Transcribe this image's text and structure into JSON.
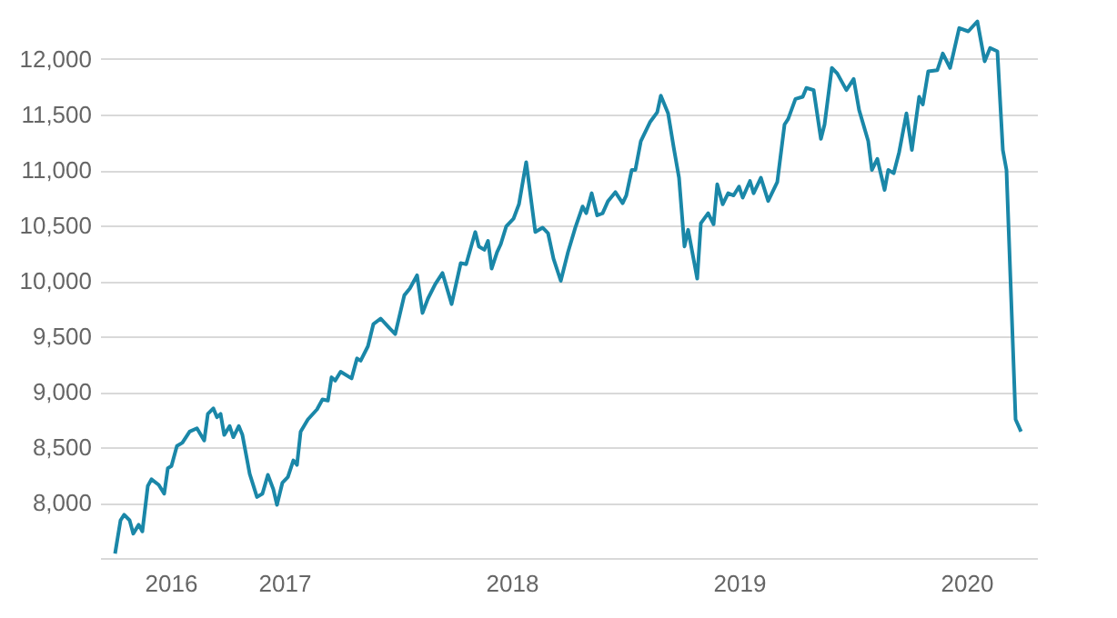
{
  "chart_data": {
    "type": "line",
    "x": [
      2016.256,
      2016.28,
      2016.296,
      2016.32,
      2016.336,
      2016.36,
      2016.376,
      2016.4,
      2016.416,
      2016.448,
      2016.472,
      2016.488,
      2016.504,
      2016.528,
      2016.552,
      2016.584,
      2016.616,
      2016.648,
      2016.664,
      2016.688,
      2016.704,
      2016.72,
      2016.736,
      2016.76,
      2016.776,
      2016.8,
      2016.816,
      2016.848,
      2016.88,
      2016.904,
      2016.928,
      2016.952,
      2016.968,
      2016.992,
      2017.016,
      2017.04,
      2017.056,
      2017.072,
      2017.104,
      2017.144,
      2017.168,
      2017.192,
      2017.208,
      2017.224,
      2017.248,
      2017.296,
      2017.32,
      2017.336,
      2017.368,
      2017.392,
      2017.424,
      2017.464,
      2017.488,
      2017.528,
      2017.552,
      2017.584,
      2017.608,
      2017.632,
      2017.664,
      2017.696,
      2017.736,
      2017.776,
      2017.8,
      2017.84,
      2017.856,
      2017.88,
      2017.896,
      2017.912,
      2017.936,
      2017.952,
      2017.976,
      2018.008,
      2018.032,
      2018.064,
      2018.104,
      2018.136,
      2018.16,
      2018.184,
      2018.216,
      2018.248,
      2018.28,
      2018.312,
      2018.328,
      2018.352,
      2018.376,
      2018.4,
      2018.424,
      2018.456,
      2018.488,
      2018.504,
      2018.528,
      2018.544,
      2018.568,
      2018.608,
      2018.64,
      2018.656,
      2018.688,
      2018.712,
      2018.736,
      2018.76,
      2018.776,
      2018.816,
      2018.832,
      2018.864,
      2018.888,
      2018.904,
      2018.928,
      2018.952,
      2018.976,
      2019.0,
      2019.016,
      2019.048,
      2019.064,
      2019.096,
      2019.128,
      2019.168,
      2019.2,
      2019.216,
      2019.248,
      2019.28,
      2019.296,
      2019.328,
      2019.36,
      2019.376,
      2019.408,
      2019.432,
      2019.472,
      2019.504,
      2019.528,
      2019.568,
      2019.584,
      2019.608,
      2019.64,
      2019.656,
      2019.68,
      2019.704,
      2019.736,
      2019.76,
      2019.792,
      2019.808,
      2019.832,
      2019.872,
      2019.896,
      2019.928,
      2019.968,
      2020.008,
      2020.048,
      2020.08,
      2020.104,
      2020.136,
      2020.16,
      2020.176,
      2020.216,
      2020.24
    ],
    "series": [
      {
        "color": "#1a87a8",
        "values": [
          7540,
          7840,
          7890,
          7840,
          7720,
          7800,
          7740,
          8150,
          8210,
          8160,
          8080,
          8310,
          8330,
          8510,
          8540,
          8640,
          8670,
          8560,
          8800,
          8850,
          8770,
          8800,
          8610,
          8690,
          8590,
          8690,
          8610,
          8260,
          8050,
          8080,
          8250,
          8120,
          7980,
          8180,
          8230,
          8380,
          8340,
          8640,
          8750,
          8840,
          8930,
          8920,
          9130,
          9100,
          9180,
          9120,
          9300,
          9280,
          9410,
          9610,
          9660,
          9570,
          9520,
          9870,
          9930,
          10050,
          9710,
          9840,
          9970,
          10070,
          9790,
          10160,
          10150,
          10440,
          10310,
          10280,
          10360,
          10110,
          10260,
          10330,
          10490,
          10560,
          10690,
          11070,
          10440,
          10480,
          10430,
          10200,
          10000,
          10260,
          10480,
          10670,
          10610,
          10790,
          10590,
          10610,
          10720,
          10800,
          10700,
          10770,
          11000,
          11000,
          11260,
          11430,
          11520,
          11670,
          11510,
          11210,
          10930,
          10310,
          10460,
          10020,
          10520,
          10610,
          10510,
          10870,
          10690,
          10790,
          10770,
          10850,
          10750,
          10900,
          10790,
          10930,
          10720,
          10890,
          11410,
          11460,
          11640,
          11660,
          11740,
          11720,
          11280,
          11410,
          11920,
          11870,
          11720,
          11820,
          11540,
          11260,
          11000,
          11100,
          10820,
          11000,
          10970,
          11160,
          11510,
          11180,
          11660,
          11590,
          11890,
          11900,
          12050,
          11920,
          12280,
          12250,
          12340,
          11980,
          12100,
          12070,
          11180,
          11000,
          8750,
          8640
        ]
      }
    ],
    "xlim": [
      2016.19,
      2020.31
    ],
    "xticks": [
      {
        "value": 2016.5,
        "label": "2016"
      },
      2017,
      2018,
      2019,
      2020
    ],
    "ylim": [
      7500,
      12500
    ],
    "yticks": [
      {
        "value": 8000,
        "label": "8,000"
      },
      {
        "value": 8500,
        "label": "8,500"
      },
      {
        "value": 9000,
        "label": "9,000"
      },
      {
        "value": 9500,
        "label": "9,500"
      },
      {
        "value": 10000,
        "label": "10,000"
      },
      {
        "value": 10500,
        "label": "10,500"
      },
      {
        "value": 11000,
        "label": "11,000"
      },
      {
        "value": 11500,
        "label": "11,500"
      },
      {
        "value": 12000,
        "label": "12,000"
      }
    ],
    "grid": "y"
  }
}
